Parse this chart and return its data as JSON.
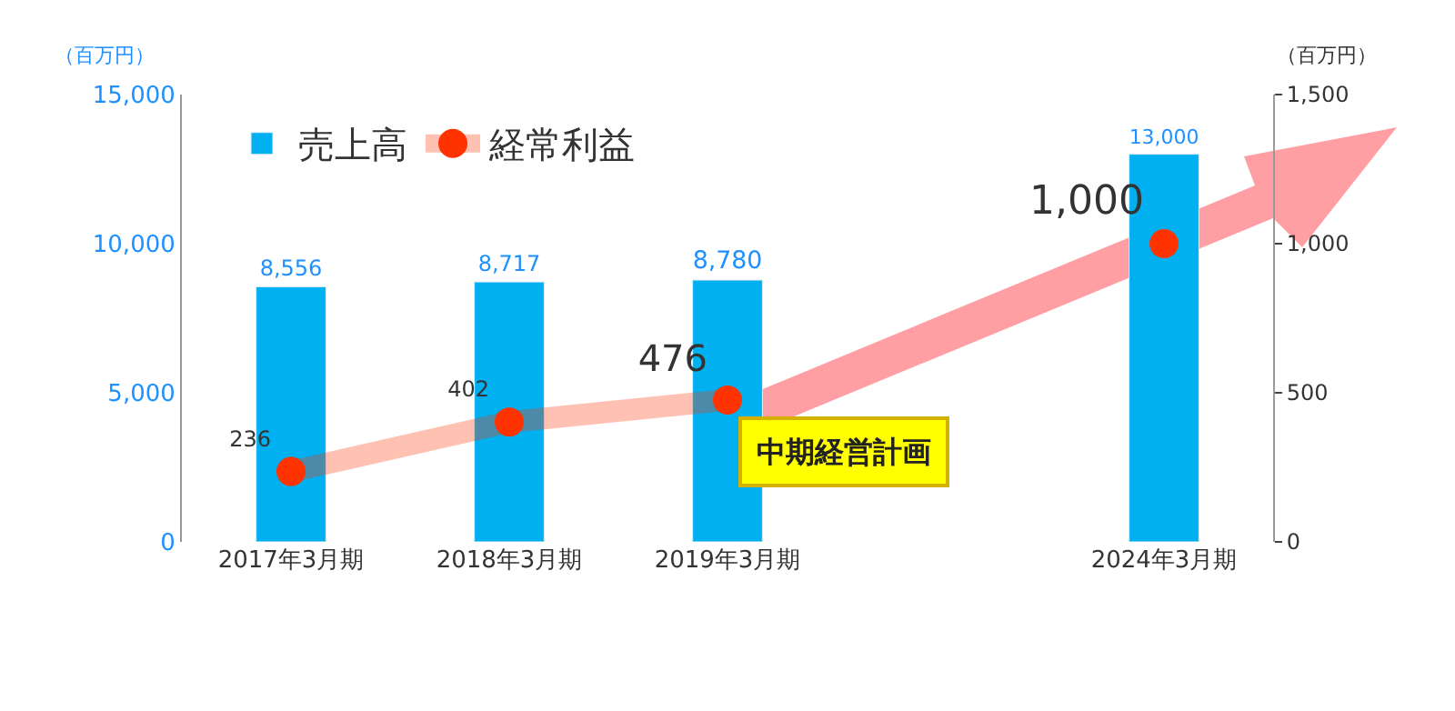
{
  "chart_data": {
    "type": "bar",
    "categories": [
      "2017年3月期",
      "2018年3月期",
      "2019年3月期",
      null,
      "2024年3月期"
    ],
    "series": [
      {
        "name": "売上高",
        "color": "#00b0f0",
        "values": [
          8556,
          8717,
          8780,
          null,
          13000
        ],
        "value_labels": [
          "8,556",
          "8,717",
          "8,780",
          null,
          "13,000"
        ]
      },
      {
        "name": "経常利益",
        "type": "line",
        "axis": "y2",
        "color": "#ff3300",
        "values": [
          236,
          402,
          476,
          null,
          1000
        ],
        "value_labels": [
          "236",
          "402",
          "476",
          null,
          "1,000"
        ]
      }
    ],
    "ylabel": "（百万円）",
    "y2label": "（百万円）",
    "ylim": [
      0,
      15000
    ],
    "yticks": [
      0,
      {
        "value": 5000,
        "label": "5,000"
      },
      {
        "value": 10000,
        "label": "10,000"
      },
      {
        "value": 15000,
        "label": "15,000"
      }
    ],
    "y2lim": [
      0,
      1500
    ],
    "y2ticks": [
      0,
      500,
      {
        "value": 1000,
        "label": "1,000"
      },
      {
        "value": 1500,
        "label": "1,500"
      }
    ],
    "annotations": [
      "中期経営計画"
    ],
    "legend": "top left",
    "grid": false,
    "marker": "circle"
  }
}
